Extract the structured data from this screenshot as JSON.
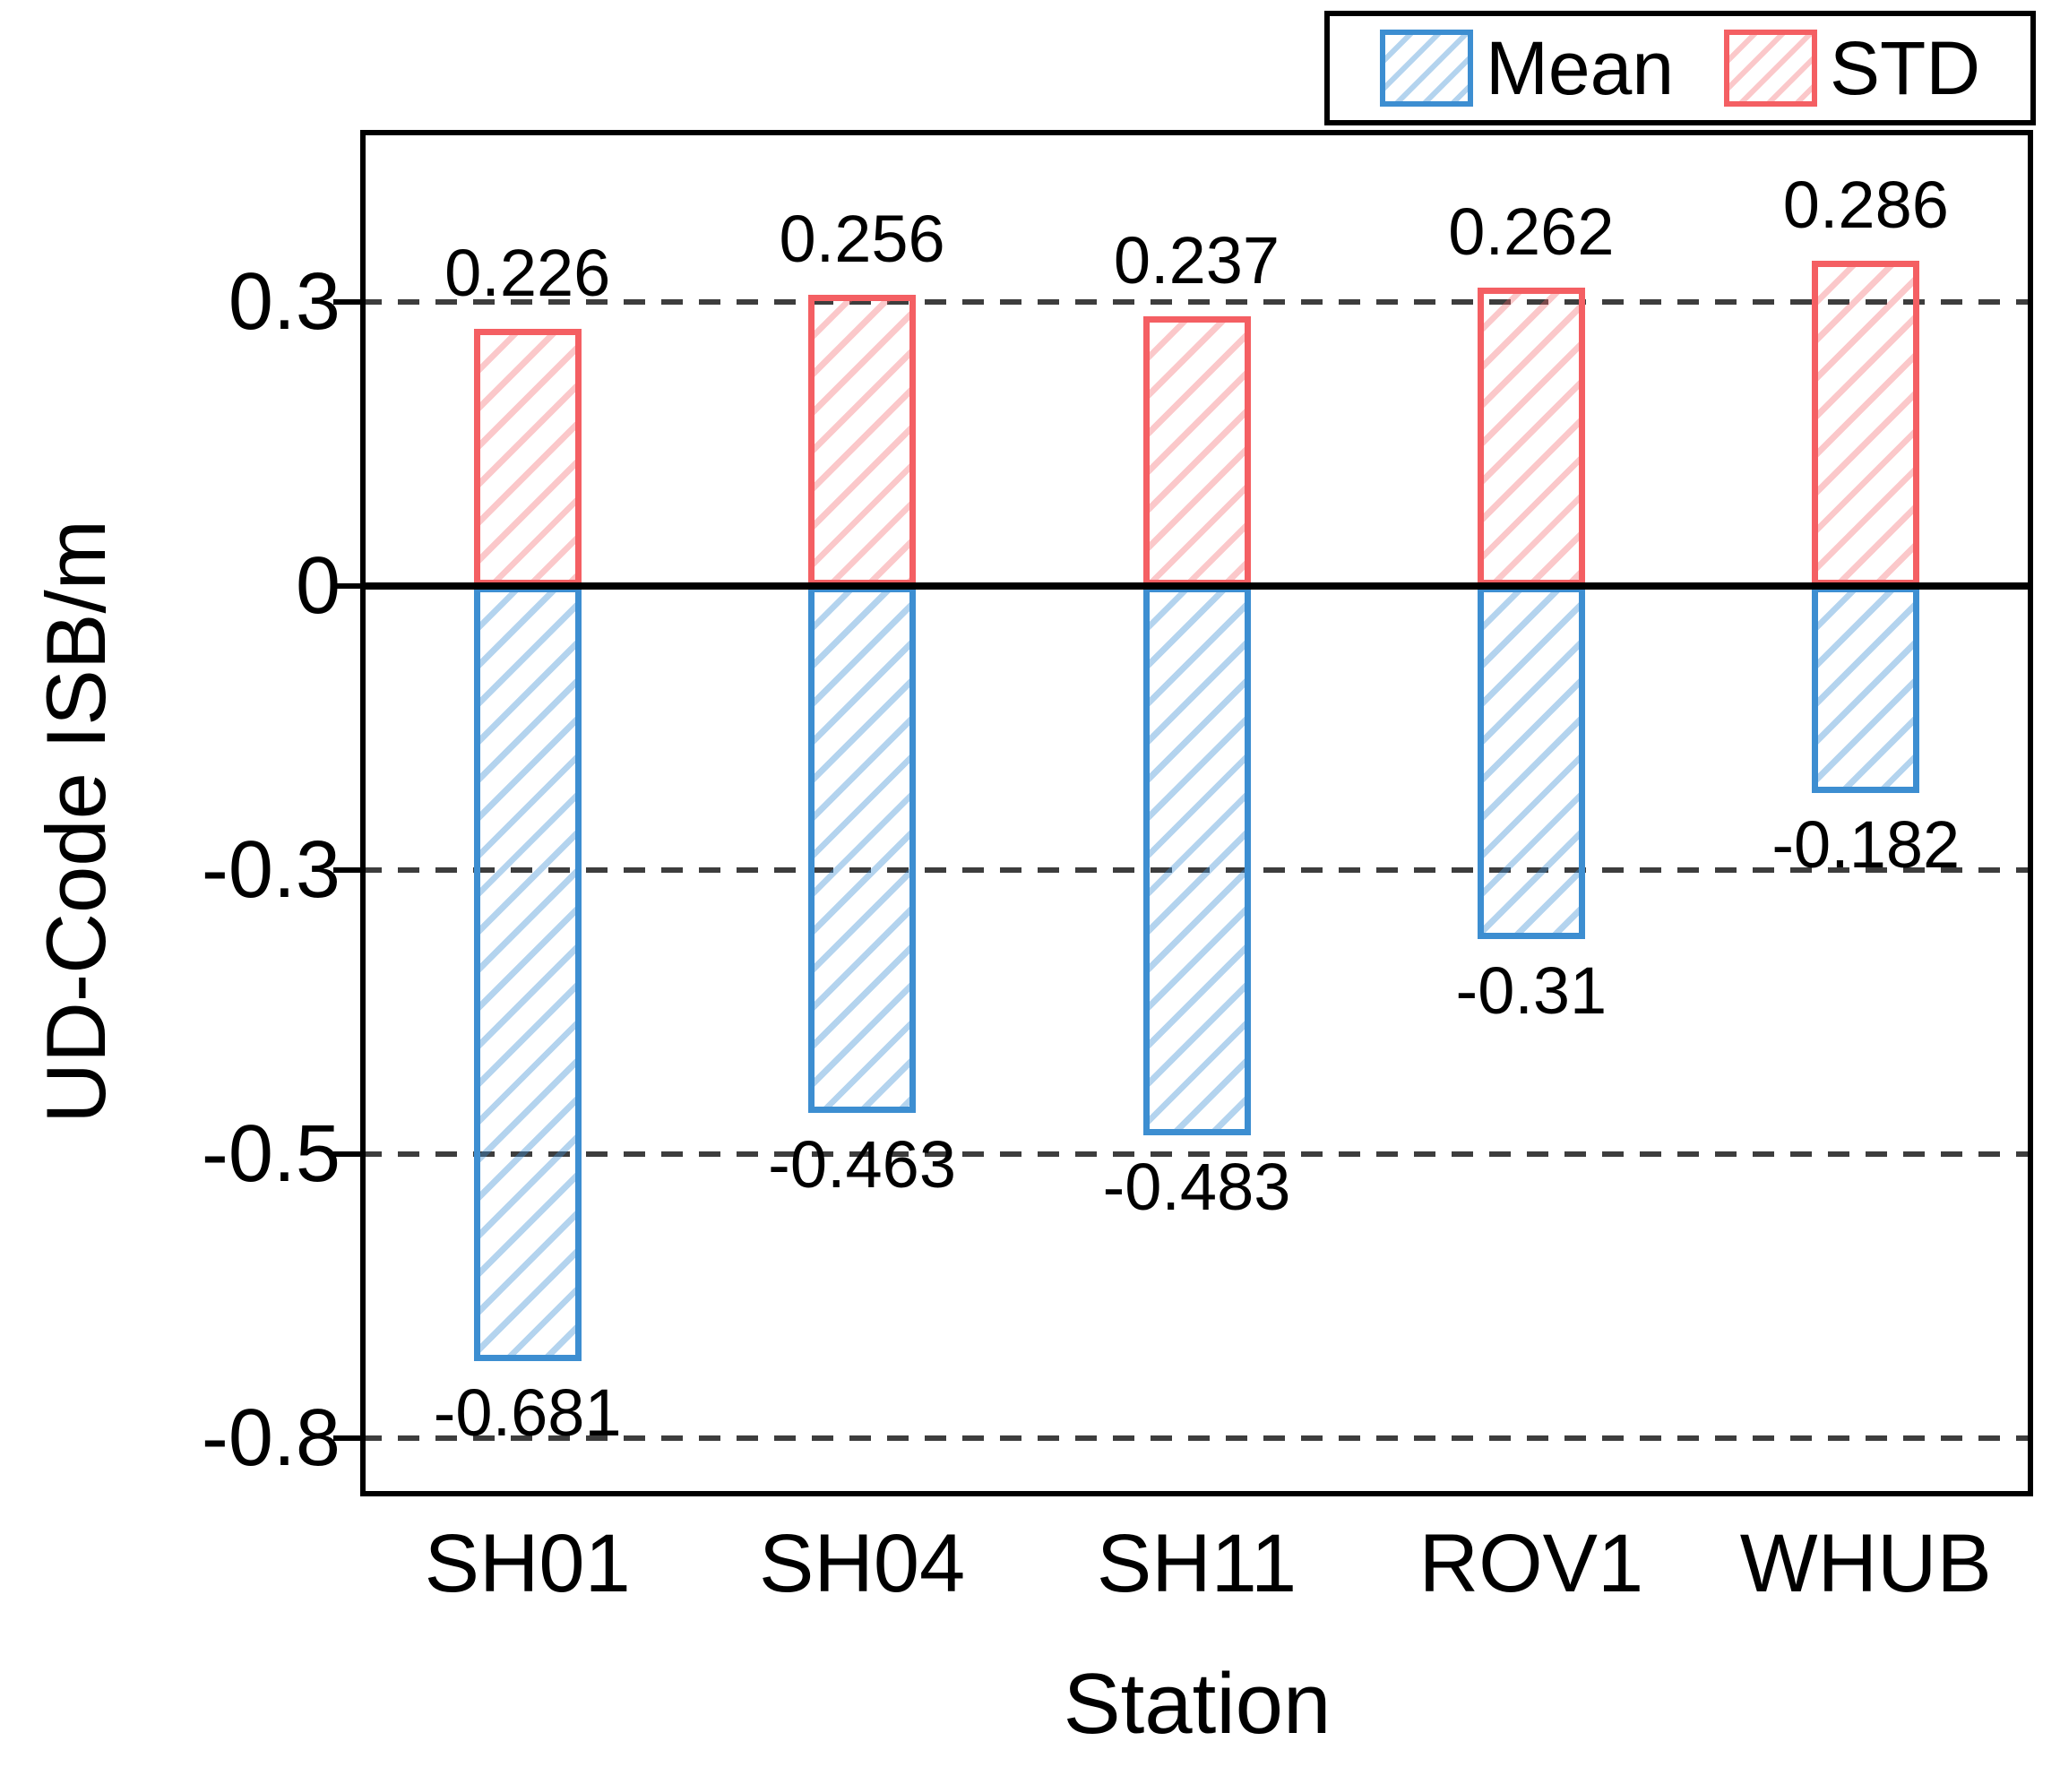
{
  "figure": {
    "x_axis_title": "Station",
    "y_axis_title": "UD-Code ISB/m",
    "legend": {
      "items": [
        {
          "label": "Mean",
          "color": "#3d8ed1"
        },
        {
          "label": "STD",
          "color": "#f45f63"
        }
      ],
      "position": "top-right"
    }
  },
  "chart_data": {
    "type": "bar",
    "title": "",
    "xlabel": "Station",
    "ylabel": "UD-Code ISB/m",
    "categories": [
      "SH01",
      "SH04",
      "SH11",
      "ROV1",
      "WHUB"
    ],
    "series": [
      {
        "name": "Mean",
        "color": "#3d8ed1",
        "values": [
          -0.681,
          -0.463,
          -0.483,
          -0.31,
          -0.182
        ],
        "labels": [
          "-0.681",
          "-0.463",
          "-0.483",
          "-0.31",
          "-0.182"
        ]
      },
      {
        "name": "STD",
        "color": "#f45f63",
        "values": [
          0.226,
          0.256,
          0.237,
          0.262,
          0.286
        ],
        "labels": [
          "0.226",
          "0.256",
          "0.237",
          "0.262",
          "0.286"
        ]
      }
    ],
    "y_ticks": [
      {
        "label": "0.3",
        "value": 0.3
      },
      {
        "label": "0",
        "value": 0
      },
      {
        "label": "-0.3",
        "value": -0.3
      },
      {
        "label": "-0.5",
        "value": -0.5
      },
      {
        "label": "-0.8",
        "value": -0.8
      }
    ],
    "ylim": [
      -0.8,
      0.4
    ],
    "grid": "horizontal dashed at ticks, solid line at zero",
    "legend_position": "top-right",
    "bar_style": "hatched '/' transparent fill, colored edges, single column per station (STD above zero, Mean below zero)"
  }
}
